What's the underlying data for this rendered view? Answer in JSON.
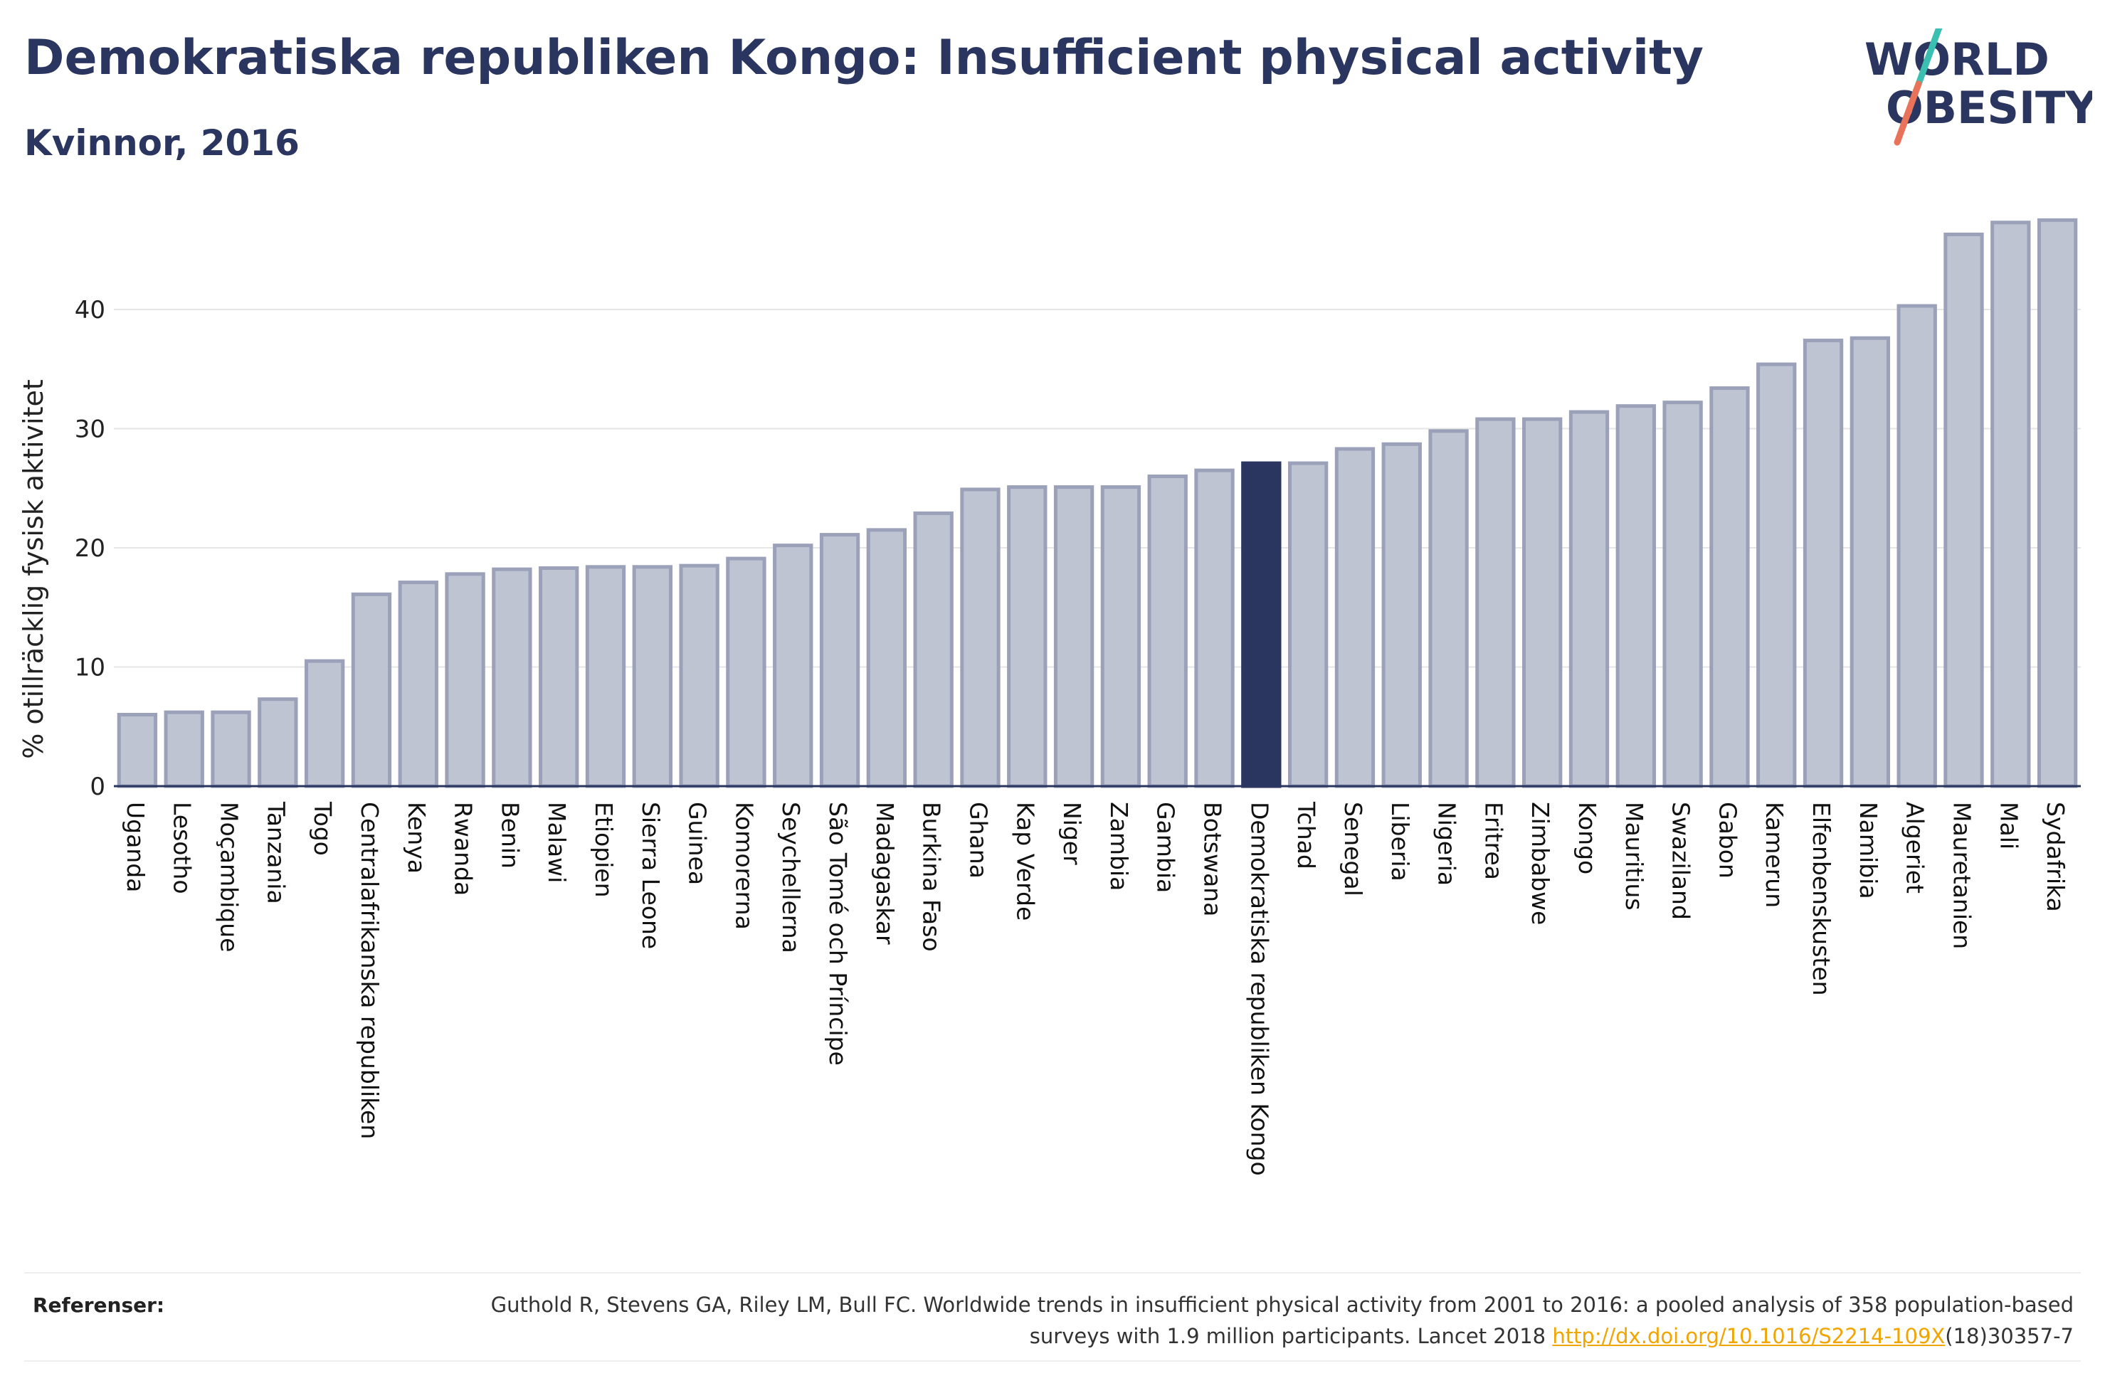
{
  "header": {
    "title": "Demokratiska republiken Kongo: Insufficient physical activity",
    "subtitle": "Kvinnor, 2016"
  },
  "logo": {
    "line1": "WORLD",
    "line2": "OBESITY",
    "colors": {
      "text": "#2b3660",
      "slash_top": "#3bbfb0",
      "slash_bottom": "#e8735a"
    }
  },
  "references": {
    "label": "Referenser:",
    "text_before": "Guthold R, Stevens GA, Riley LM, Bull FC. Worldwide trends in insufficient physical activity from 2001 to 2016: a pooled analysis of 358 population-based surveys with 1.9 million participants. Lancet 2018 ",
    "link": "http://dx.doi.org/10.1016/S2214-109X",
    "text_after": "(18)30357-7"
  },
  "chart_data": {
    "type": "bar",
    "title": "Demokratiska republiken Kongo: Insufficient physical activity",
    "subtitle": "Kvinnor, 2016",
    "ylabel": "% otillräcklig fysisk aktivitet",
    "xlabel": "",
    "ylim": [
      0,
      50
    ],
    "yticks": [
      0,
      10,
      20,
      30,
      40
    ],
    "grid": true,
    "highlight": "Demokratiska republiken Kongo",
    "colors": {
      "bar": "#bfc4d2",
      "bar_edge": "#9aa1b8",
      "highlight": "#2b3660",
      "grid": "#e6e6e6",
      "axis": "#2b3660"
    },
    "categories": [
      "Uganda",
      "Lesotho",
      "Moçambique",
      "Tanzania",
      "Togo",
      "Centralafrikanska republiken",
      "Kenya",
      "Rwanda",
      "Benin",
      "Malawi",
      "Etiopien",
      "Sierra Leone",
      "Guinea",
      "Komorerna",
      "Seychellerna",
      "São Tomé och Príncipe",
      "Madagaskar",
      "Burkina Faso",
      "Ghana",
      "Kap Verde",
      "Niger",
      "Zambia",
      "Gambia",
      "Botswana",
      "Demokratiska republiken Kongo",
      "Tchad",
      "Senegal",
      "Liberia",
      "Nigeria",
      "Eritrea",
      "Zimbabwe",
      "Kongo",
      "Mauritius",
      "Swaziland",
      "Gabon",
      "Kamerun",
      "Elfenbenskusten",
      "Namibia",
      "Algeriet",
      "Mauretanien",
      "Mali",
      "Sydafrika"
    ],
    "values": [
      6.0,
      6.2,
      6.2,
      7.3,
      10.5,
      16.1,
      17.1,
      17.8,
      18.2,
      18.3,
      18.4,
      18.4,
      18.5,
      19.1,
      20.2,
      21.1,
      21.5,
      22.9,
      24.9,
      25.1,
      25.1,
      25.1,
      26.0,
      26.5,
      27.1,
      27.1,
      28.3,
      28.7,
      29.8,
      30.8,
      30.8,
      31.4,
      31.9,
      32.2,
      33.4,
      35.4,
      37.4,
      37.6,
      40.3,
      46.3,
      47.3,
      47.5
    ]
  }
}
